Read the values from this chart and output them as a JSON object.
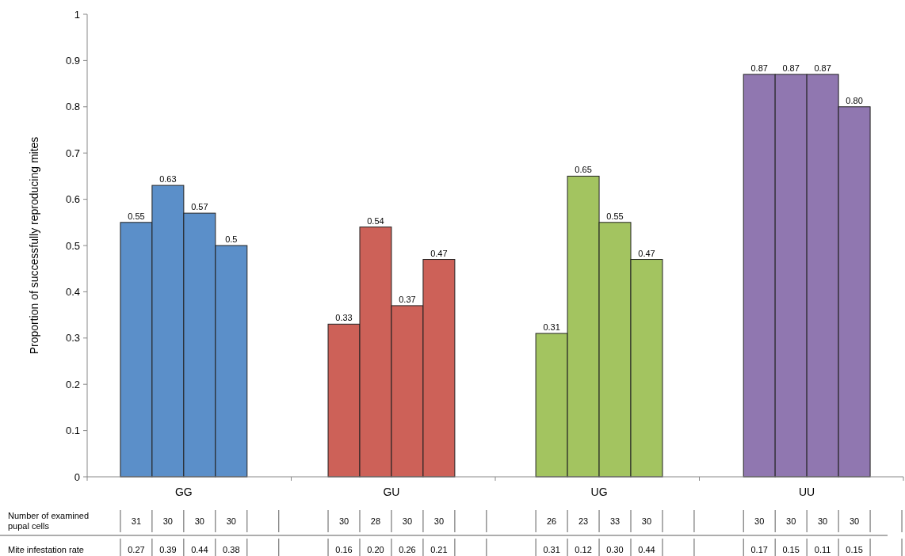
{
  "chart_data": {
    "type": "bar",
    "ylabel": "Proportion of successfully reproducing mites",
    "categories": [
      "GG",
      "GU",
      "UG",
      "UU"
    ],
    "ylim": [
      0,
      1
    ],
    "yticks": [
      0,
      0.1,
      0.2,
      0.3,
      0.4,
      0.5,
      0.6,
      0.7,
      0.8,
      0.9,
      1
    ],
    "grid": false,
    "series": [
      {
        "colors": [
          "#5b8fc9",
          "#cd6158",
          "#a3c460",
          "#9077b0"
        ],
        "values": [
          0.55,
          0.33,
          0.31,
          0.87
        ],
        "value_labels": [
          "0.55",
          "0.33",
          "0.31",
          "0.87"
        ]
      },
      {
        "colors": [
          "#5b8fc9",
          "#cd6158",
          "#a3c460",
          "#9077b0"
        ],
        "values": [
          0.63,
          0.54,
          0.65,
          0.87
        ],
        "value_labels": [
          "0.63",
          "0.54",
          "0.65",
          "0.87"
        ]
      },
      {
        "colors": [
          "#5b8fc9",
          "#cd6158",
          "#a3c460",
          "#9077b0"
        ],
        "values": [
          0.57,
          0.37,
          0.55,
          0.87
        ],
        "value_labels": [
          "0.57",
          "0.37",
          "0.55",
          "0.87"
        ]
      },
      {
        "colors": [
          "#5b8fc9",
          "#cd6158",
          "#a3c460",
          "#9077b0"
        ],
        "values": [
          0.5,
          0.47,
          0.47,
          0.8
        ],
        "value_labels": [
          "0.5",
          "0.47",
          "0.47",
          "0.80"
        ]
      }
    ],
    "annotations": [
      "Number of examined pupal cells",
      "31",
      "30",
      "30",
      "30",
      "30",
      "28",
      "30",
      "30",
      "26",
      "23",
      "33",
      "30",
      "30",
      "30",
      "30",
      "30",
      "Mite infestation rate",
      "0.27",
      "0.39",
      "0.44",
      "0.38",
      "0.16",
      "0.20",
      "0.26",
      "0.21",
      "0.31",
      "0.12",
      "0.30",
      "0.44",
      "0.17",
      "0.15",
      "0.11",
      "0.15"
    ]
  }
}
